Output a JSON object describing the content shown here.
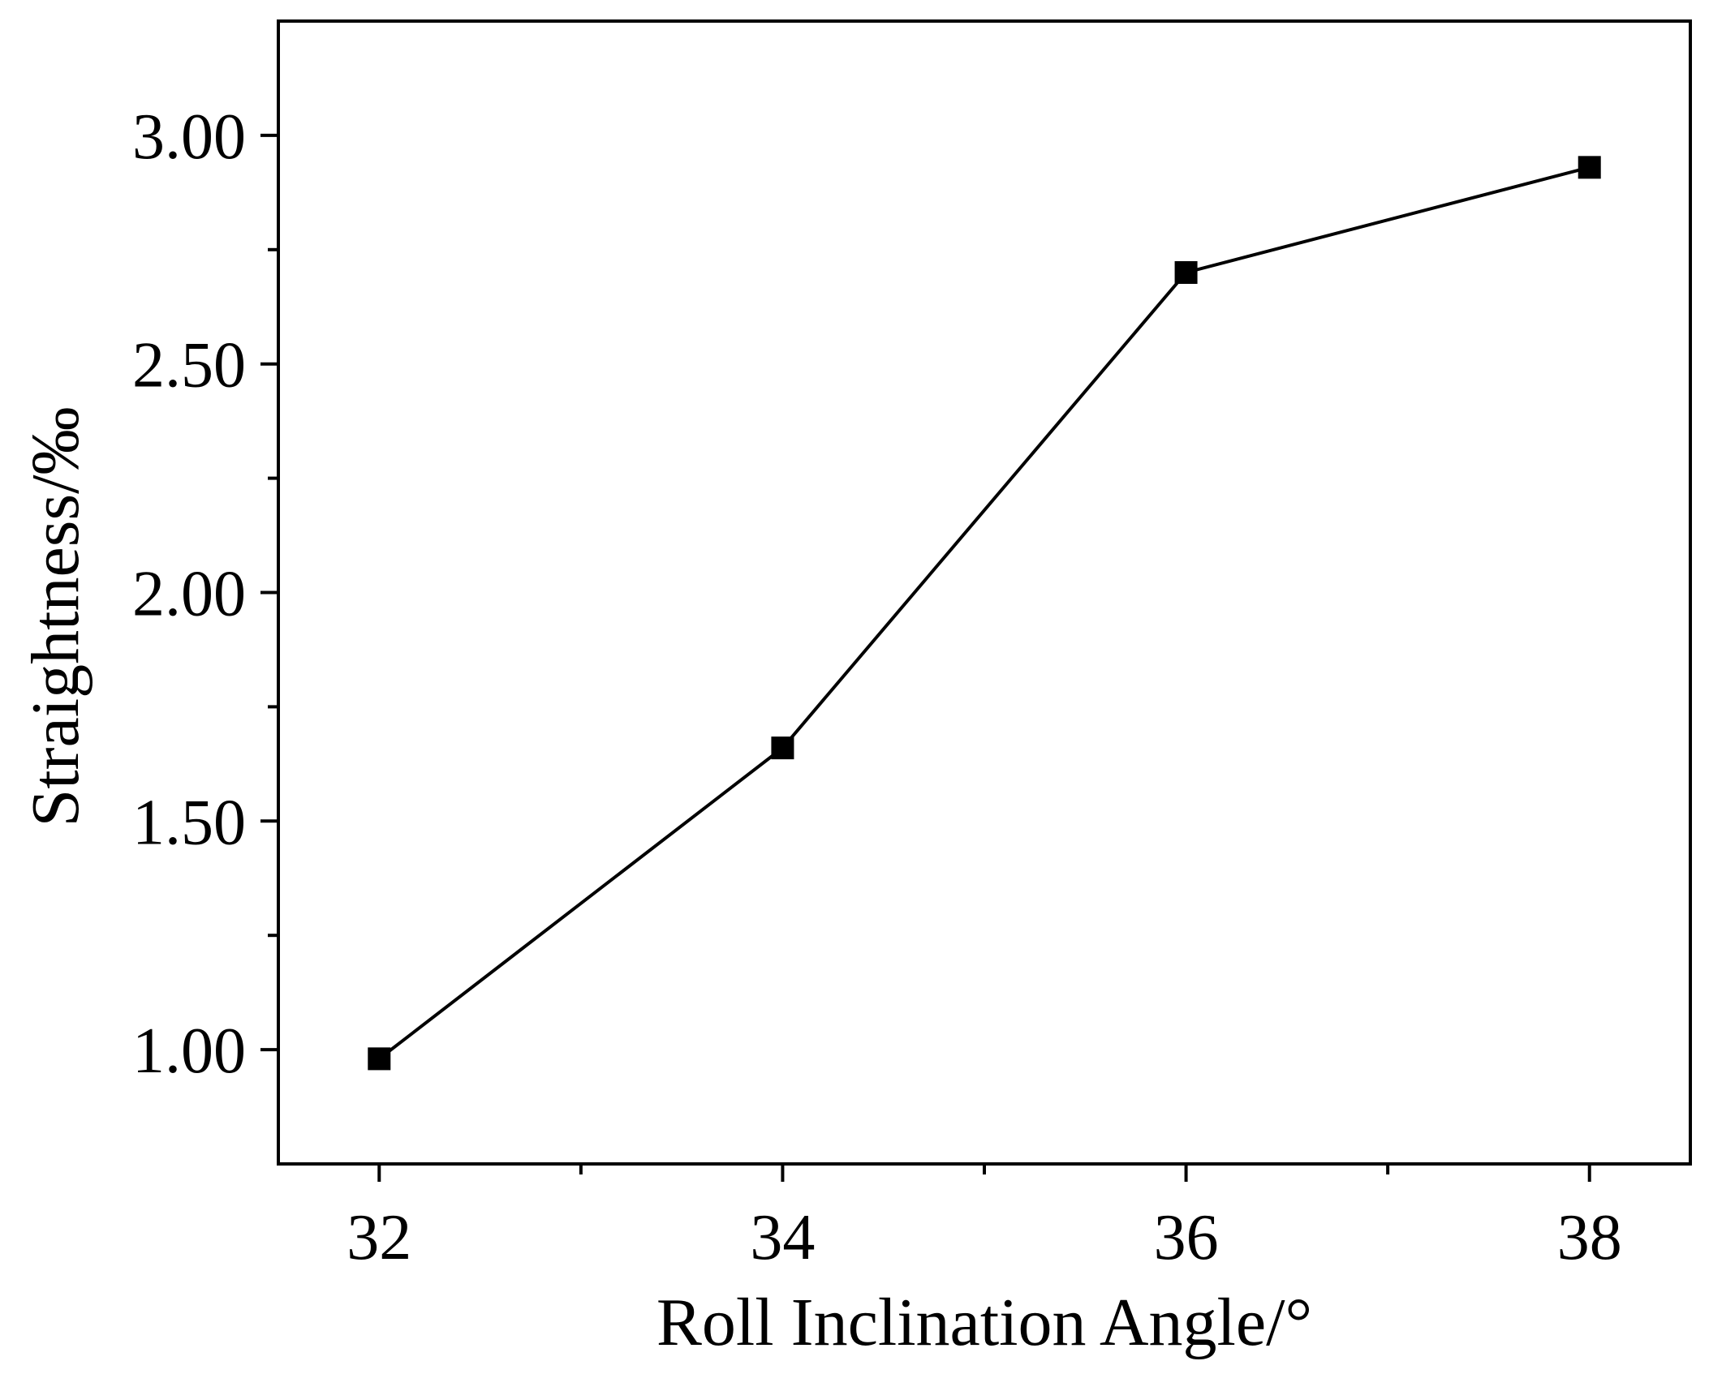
{
  "chart_data": {
    "type": "line",
    "title": "",
    "xlabel": "Roll Inclination Angle/°",
    "ylabel": "Straightness/‰",
    "xlim": [
      31.5,
      38.5
    ],
    "ylim": [
      0.75,
      3.25
    ],
    "x_major_ticks": [
      32,
      34,
      36,
      38
    ],
    "x_minor_ticks": [
      33,
      35,
      37
    ],
    "y_major_ticks": [
      1.0,
      1.5,
      2.0,
      2.5,
      3.0
    ],
    "y_minor_ticks": [
      1.25,
      1.75,
      2.25,
      2.75
    ],
    "x_tick_labels": [
      "32",
      "34",
      "36",
      "38"
    ],
    "y_tick_labels": [
      "1.00",
      "1.50",
      "2.00",
      "2.50",
      "3.00"
    ],
    "grid": false,
    "legend": "none",
    "series": [
      {
        "marker": "square",
        "color": "#000000",
        "x": [
          32,
          34,
          36,
          38
        ],
        "y": [
          0.98,
          1.66,
          2.7,
          2.93
        ]
      }
    ]
  }
}
